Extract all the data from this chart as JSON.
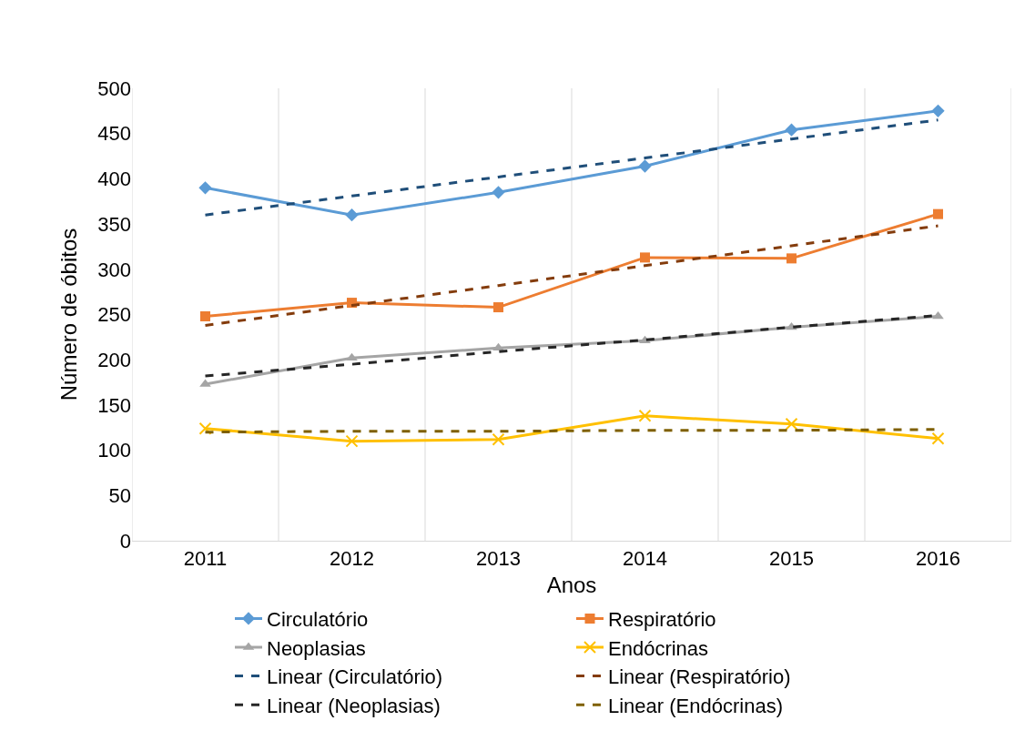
{
  "chart_data": {
    "type": "line",
    "xlabel": "Anos",
    "ylabel": "Número de óbitos",
    "categories": [
      "2011",
      "2012",
      "2013",
      "2014",
      "2015",
      "2016"
    ],
    "ylim": [
      0,
      500
    ],
    "yticks": [
      0,
      50,
      100,
      150,
      200,
      250,
      300,
      350,
      400,
      450,
      500
    ],
    "grid": "x",
    "legend": "bottom",
    "series": [
      {
        "name": "Circulatório",
        "color": "#5b9bd5",
        "marker": "diamond",
        "line_style": "solid",
        "values": [
          390,
          360,
          385,
          414,
          454,
          475
        ]
      },
      {
        "name": "Respiratório",
        "color": "#ed7d31",
        "marker": "square",
        "line_style": "solid",
        "values": [
          248,
          263,
          258,
          313,
          312,
          361
        ]
      },
      {
        "name": "Neoplasias",
        "color": "#a5a5a5",
        "marker": "triangle",
        "line_style": "solid",
        "values": [
          173,
          202,
          213,
          221,
          236,
          248
        ]
      },
      {
        "name": "Endócrinas",
        "color": "#ffc000",
        "marker": "cross",
        "line_style": "solid",
        "values": [
          124,
          110,
          112,
          138,
          129,
          113
        ]
      },
      {
        "name": "Linear (Circulatório)",
        "color": "#1f4e79",
        "marker": "none",
        "line_style": "dashed",
        "values": [
          360,
          381,
          402,
          423,
          444,
          465
        ]
      },
      {
        "name": "Linear (Respiratório)",
        "color": "#843c0c",
        "marker": "none",
        "line_style": "dashed",
        "values": [
          238,
          260,
          282,
          304,
          326,
          348
        ]
      },
      {
        "name": "Linear (Neoplasias)",
        "color": "#262626",
        "marker": "none",
        "line_style": "dashed",
        "values": [
          182,
          195,
          209,
          222,
          236,
          249
        ]
      },
      {
        "name": "Linear (Endócrinas)",
        "color": "#7f6000",
        "marker": "none",
        "line_style": "dashed",
        "values": [
          120,
          121,
          121,
          122,
          122,
          123
        ]
      }
    ]
  }
}
